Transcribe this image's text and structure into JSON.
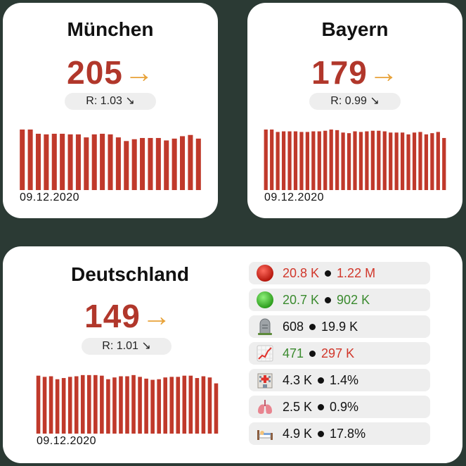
{
  "colors": {
    "background": "#2b3a34",
    "incidence": "#b1372b",
    "arrow": "#e8a33a",
    "bar": "#c0392b",
    "stat_red": "#d1362a",
    "stat_green": "#3a8a2e"
  },
  "widgets": [
    {
      "title": "München",
      "incidence": "205",
      "trend_icon": "arrow-right-icon",
      "r_value": "R: 1.03 ↘",
      "date": "09.12.2020",
      "chart_data": {
        "type": "bar",
        "values": [
          100,
          100,
          93,
          92,
          93,
          93,
          92,
          92,
          87,
          92,
          93,
          92,
          87,
          81,
          84,
          86,
          86,
          86,
          82,
          85,
          89,
          91,
          85
        ],
        "ylim": [
          0,
          100
        ]
      }
    },
    {
      "title": "Bayern",
      "incidence": "179",
      "trend_icon": "arrow-right-icon",
      "r_value": "R: 0.99 ↘",
      "date": "09.12.2020",
      "chart_data": {
        "type": "bar",
        "values": [
          100,
          100,
          96,
          97,
          97,
          97,
          96,
          96,
          97,
          97,
          98,
          100,
          99,
          95,
          94,
          97,
          96,
          97,
          98,
          98,
          97,
          95,
          95,
          95,
          92,
          95,
          96,
          92,
          94,
          96,
          86
        ],
        "ylim": [
          0,
          100
        ]
      }
    },
    {
      "title": "Deutschland",
      "incidence": "149",
      "trend_icon": "arrow-right-icon",
      "r_value": "R: 1.01 ↘",
      "date": "09.12.2020",
      "chart_data": {
        "type": "bar",
        "values": [
          98,
          96,
          97,
          92,
          94,
          96,
          97,
          99,
          99,
          99,
          98,
          92,
          95,
          97,
          97,
          99,
          96,
          93,
          91,
          92,
          95,
          96,
          96,
          98,
          98,
          94,
          97,
          95,
          85
        ],
        "ylim": [
          0,
          100
        ]
      },
      "stats": [
        {
          "icon": "red-circle-icon",
          "a": "20.8 K",
          "a_color": "red",
          "b": "1.22 M",
          "b_color": "red"
        },
        {
          "icon": "green-circle-icon",
          "a": "20.7 K",
          "a_color": "green",
          "b": "902 K",
          "b_color": "green"
        },
        {
          "icon": "headstone-icon",
          "a": "608",
          "a_color": "dark",
          "b": "19.9 K",
          "b_color": "dark"
        },
        {
          "icon": "chart-increasing-icon",
          "a": "471",
          "a_color": "green",
          "b": "297 K",
          "b_color": "red"
        },
        {
          "icon": "hospital-icon",
          "a": "4.3 K",
          "a_color": "dark",
          "b": "1.4%",
          "b_color": "dark"
        },
        {
          "icon": "lungs-icon",
          "a": "2.5 K",
          "a_color": "dark",
          "b": "0.9%",
          "b_color": "dark"
        },
        {
          "icon": "person-in-bed-icon",
          "a": "4.9 K",
          "a_color": "dark",
          "b": "17.8%",
          "b_color": "dark"
        }
      ]
    }
  ]
}
